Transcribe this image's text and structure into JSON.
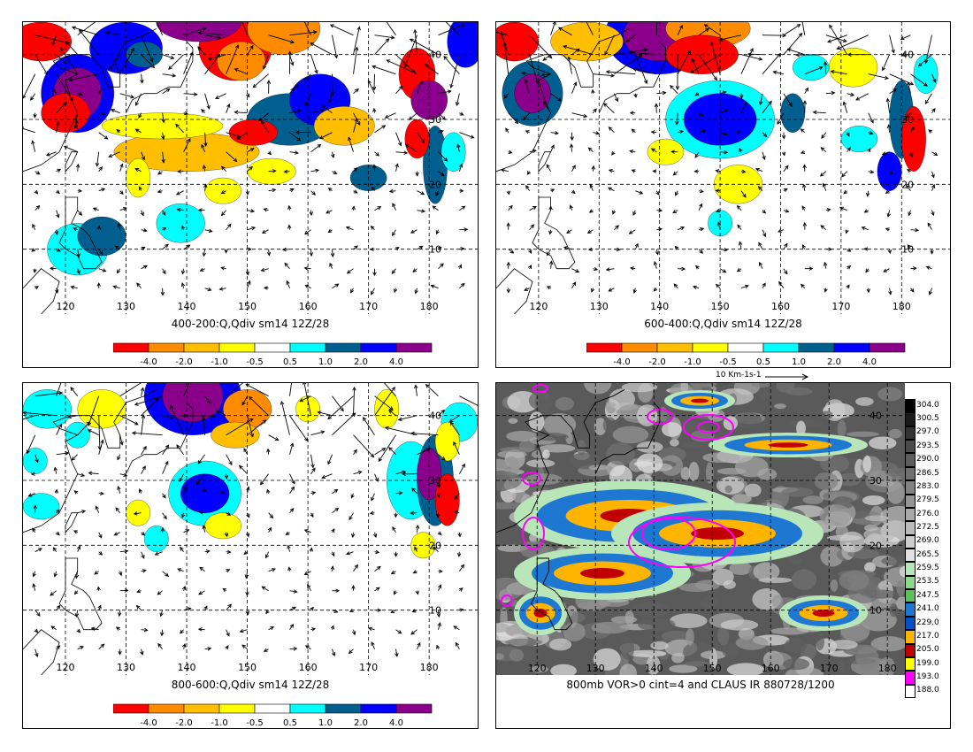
{
  "panels": [
    {
      "id": "p1",
      "caption": "400-200:Q,Qdiv sm14 12Z/28"
    },
    {
      "id": "p2",
      "caption": "600-400:Q,Qdiv sm14 12Z/28",
      "vector_ref": "10 Km-1s-1"
    },
    {
      "id": "p3",
      "caption": "800-600:Q,Qdiv sm14 12Z/28"
    },
    {
      "id": "p4",
      "caption": "800mb VOR>0 cint=4 and CLAUS IR 880728/1200"
    }
  ],
  "lon_labels": [
    "120",
    "130",
    "140",
    "150",
    "160",
    "170",
    "180"
  ],
  "lat_labels": [
    "10",
    "20",
    "30",
    "40"
  ],
  "div_colorbar": {
    "labels": [
      "-4.0",
      "-2.0",
      "-1.0",
      "-0.5",
      "0.5",
      "1.0",
      "2.0",
      "4.0"
    ],
    "colors": [
      "#ff0000",
      "#ff8c00",
      "#ffbf00",
      "#ffff00",
      "#ffffff",
      "#00ffff",
      "#005f8f",
      "#0000ff",
      "#8b008b"
    ]
  },
  "ir_colorbar": {
    "labels": [
      "304.0",
      "300.5",
      "297.0",
      "293.5",
      "290.0",
      "286.5",
      "283.0",
      "279.5",
      "276.0",
      "272.5",
      "269.0",
      "265.5",
      "259.5",
      "253.5",
      "247.5",
      "241.0",
      "229.0",
      "217.0",
      "205.0",
      "199.0",
      "193.0",
      "188.0"
    ],
    "colors": [
      "#000000",
      "#1a1a1a",
      "#333333",
      "#4a4a4a",
      "#5e5e5e",
      "#707070",
      "#828282",
      "#959595",
      "#a8a8a8",
      "#bbbbbb",
      "#cecece",
      "#e2e2e2",
      "#b9e6b9",
      "#8fd68f",
      "#5cc05c",
      "#1e78d2",
      "#0050c8",
      "#ffb400",
      "#c00000",
      "#ffff00",
      "#ff00ff",
      "#ffffff"
    ]
  }
}
